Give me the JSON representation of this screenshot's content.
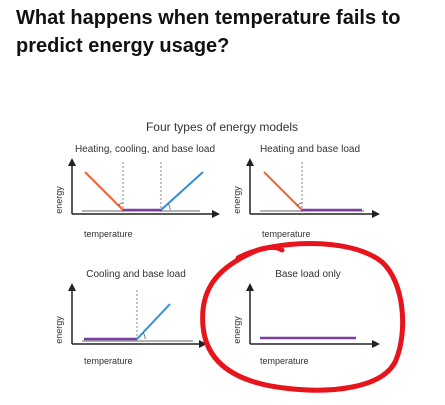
{
  "heading": "What happens when temperature fails to predict energy usage?",
  "figure_title": "Four types of energy models",
  "panels": [
    {
      "title": "Heating, cooling, and base load",
      "xlabel": "temperature",
      "ylabel": "energy"
    },
    {
      "title": "Heating and base load",
      "xlabel": "temperature",
      "ylabel": "energy"
    },
    {
      "title": "Cooling and base load",
      "xlabel": "temperature",
      "ylabel": "energy"
    },
    {
      "title": "Base load only",
      "xlabel": "temperature",
      "ylabel": "energy"
    }
  ],
  "colors": {
    "heating": "#f0643a",
    "cooling": "#2f8fd6",
    "base_load": "#7a3fa0",
    "axis": "#222222",
    "guide": "#666666",
    "annotation_circle": "#e8141c"
  }
}
